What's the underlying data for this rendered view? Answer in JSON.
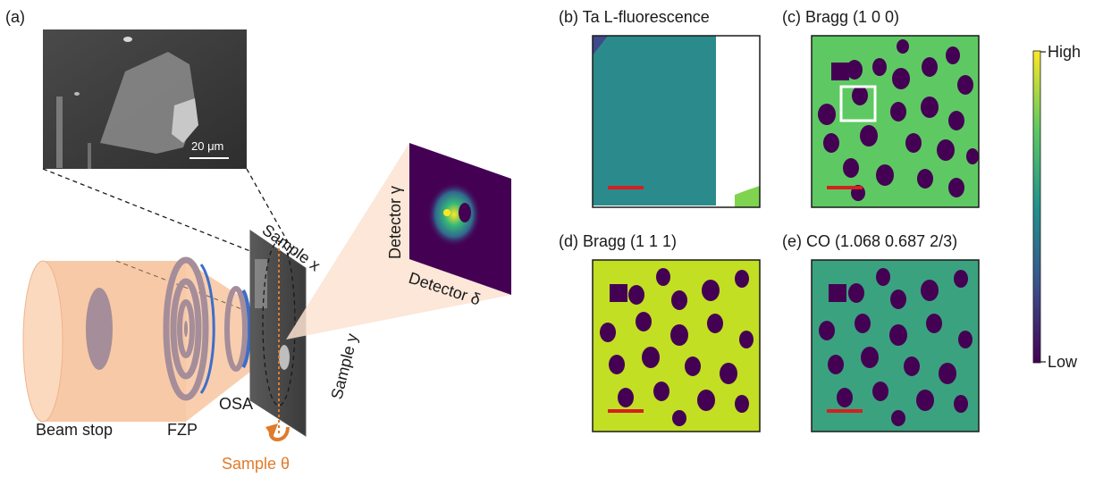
{
  "panel_a": {
    "label": "(a)",
    "scale_bar": "20 μm",
    "beam_stop": "Beam stop",
    "fzp": "FZP",
    "osa": "OSA",
    "sample_x": "Sample x",
    "sample_y": "Sample y",
    "sample_theta": "Sample θ",
    "detector_gamma": "Detector γ",
    "detector_delta": "Detector δ"
  },
  "maps": [
    {
      "label": "(b) Ta L-fluorescence"
    },
    {
      "label": "(c) Bragg (1 0 0)"
    },
    {
      "label": "(d) Bragg (1 1 1)"
    },
    {
      "label": "(e) CO (1.068 0.687 2/3)"
    }
  ],
  "colorbar": {
    "high": "High",
    "low": "Low"
  },
  "colors": {
    "beam": "#f7c9a6",
    "ring": "#a58d99",
    "osa": "#3d6ec9",
    "accent": "#e07b2b",
    "scale_bar": "#d42020",
    "viridis_low": "#440154",
    "viridis_mid": "#21918c",
    "viridis_high": "#fde725"
  }
}
